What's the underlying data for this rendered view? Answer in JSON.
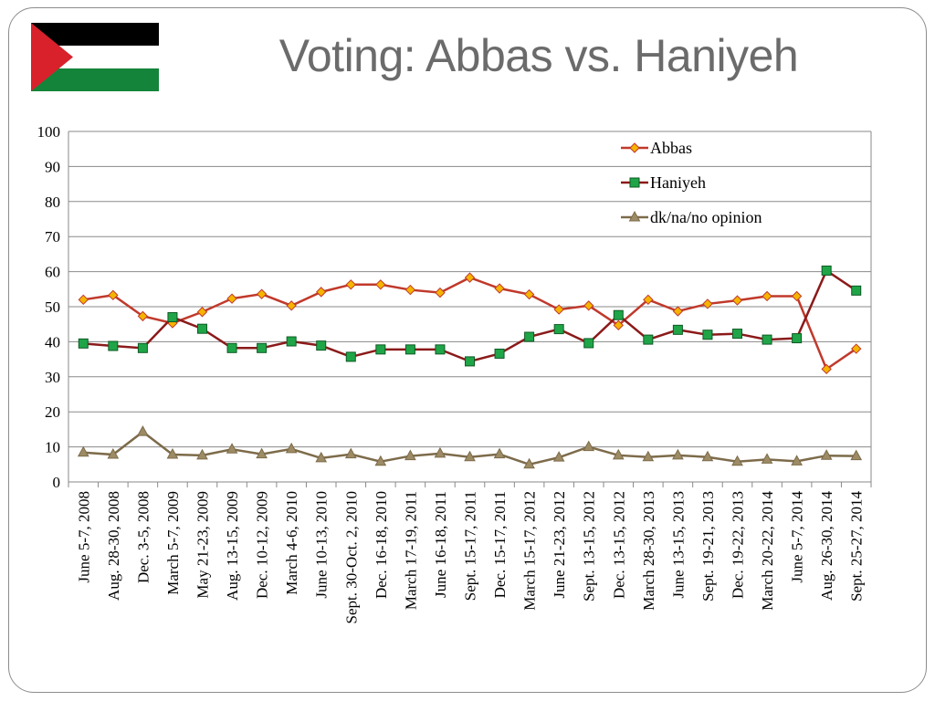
{
  "title": "Voting: Abbas vs. Haniyeh",
  "flag": {
    "colors": {
      "black": "#000000",
      "white": "#ffffff",
      "green": "#14843a",
      "red": "#d8212b"
    }
  },
  "chart_data": {
    "type": "line",
    "title": "",
    "xlabel": "",
    "ylabel": "",
    "ylim": [
      0,
      100
    ],
    "yticks": [
      0,
      10,
      20,
      30,
      40,
      50,
      60,
      70,
      80,
      90,
      100
    ],
    "grid": "horizontal",
    "legend_position": "top-right",
    "categories": [
      "June 5-7, 2008",
      "Aug. 28-30, 2008",
      "Dec. 3-5, 2008",
      "March 5-7, 2009",
      "May 21-23, 2009",
      "Aug. 13-15, 2009",
      "Dec. 10-12, 2009",
      "March 4-6, 2010",
      "June 10-13, 2010",
      "Sept. 30-Oct. 2, 2010",
      "Dec. 16-18, 2010",
      "March 17-19, 2011",
      "June 16-18, 2011",
      "Sept. 15-17, 2011",
      "Dec. 15-17, 2011",
      "March 15-17, 2012",
      "June 21-23, 2012",
      "Sept. 13-15, 2012",
      "Dec. 13-15, 2012",
      "March 28-30, 2013",
      "June 13-15, 2013",
      "Sept. 19-21, 2013",
      "Dec. 19-22, 2013",
      "March 20-22, 2014",
      "June 5-7, 2014",
      "Aug. 26-30, 2014",
      "Sept. 25-27, 2014"
    ],
    "series": [
      {
        "name": "Abbas",
        "color": "#c0392b",
        "marker": "diamond",
        "marker_color": "#f5b400",
        "values": [
          52,
          53.3,
          47.3,
          45.3,
          48.5,
          52.3,
          53.6,
          50.3,
          54.2,
          56.3,
          56.3,
          54.8,
          54,
          58.3,
          55.2,
          53.5,
          49.2,
          50.3,
          44.7,
          52,
          48.7,
          50.8,
          51.8,
          53,
          53,
          32.2,
          38
        ]
      },
      {
        "name": "Haniyeh",
        "color": "#8b1a1a",
        "marker": "square",
        "marker_color": "#1fa548",
        "values": [
          39.5,
          38.8,
          38.2,
          47,
          43.7,
          38.2,
          38.2,
          40.1,
          38.9,
          35.7,
          37.8,
          37.8,
          37.8,
          34.4,
          36.6,
          41.4,
          43.6,
          39.6,
          47.6,
          40.6,
          43.4,
          42,
          42.3,
          40.6,
          41,
          60.3,
          54.6
        ]
      },
      {
        "name": "dk/na/no opinion",
        "color": "#7d6b4a",
        "marker": "triangle",
        "marker_color": "#9c8b64",
        "values": [
          8.4,
          7.8,
          14.3,
          7.8,
          7.6,
          9.3,
          7.9,
          9.4,
          6.8,
          7.9,
          5.8,
          7.4,
          8.1,
          7.1,
          7.9,
          5,
          7,
          10,
          7.6,
          7.1,
          7.6,
          7.1,
          5.8,
          6.4,
          5.9,
          7.5,
          7.4
        ]
      }
    ]
  }
}
